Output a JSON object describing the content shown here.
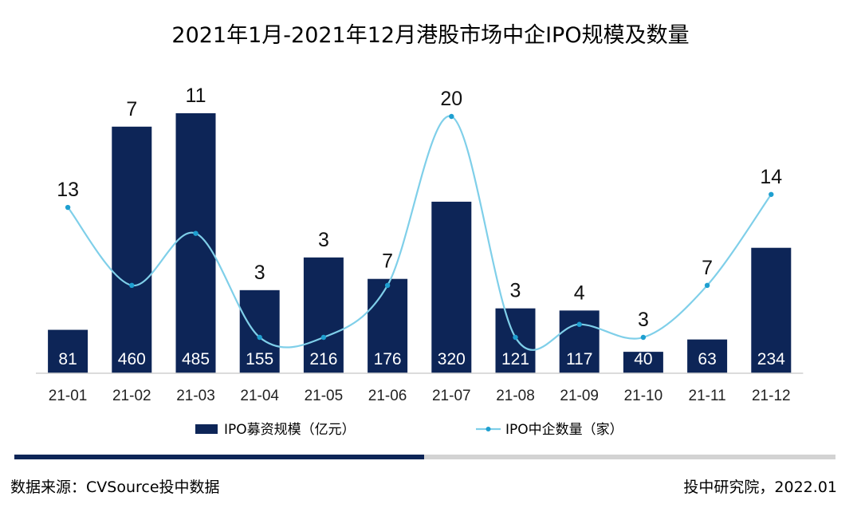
{
  "chart_data": {
    "type": "bar+line",
    "title": "2021年1月-2021年12月港股市场中企IPO规模及数量",
    "categories": [
      "21-01",
      "21-02",
      "21-03",
      "21-04",
      "21-05",
      "21-06",
      "21-07",
      "21-08",
      "21-09",
      "21-10",
      "21-11",
      "21-12"
    ],
    "series": [
      {
        "name": "IPO募资规模（亿元）",
        "type": "bar",
        "axis": "left",
        "values": [
          81,
          460,
          485,
          155,
          216,
          176,
          320,
          121,
          117,
          40,
          63,
          234
        ]
      },
      {
        "name": "IPO中企数量（家）",
        "type": "line",
        "axis": "right",
        "smooth": true,
        "values": [
          13,
          7,
          11,
          3,
          3,
          7,
          20,
          3,
          4,
          3,
          7,
          14
        ]
      }
    ],
    "ylim_left": [
      0,
      500
    ],
    "ylim_right": [
      0,
      22
    ],
    "grid": false,
    "legend_position": "bottom"
  },
  "colors": {
    "bar": "#0d2557",
    "line": "#7fcfe9",
    "axis": "#d0d0d0",
    "divider_dark": "#0d2557",
    "divider_light": "#d3d3d3"
  },
  "footer": {
    "source": "数据来源：CVSource投中数据",
    "credit": "投中研究院，2022.01"
  }
}
